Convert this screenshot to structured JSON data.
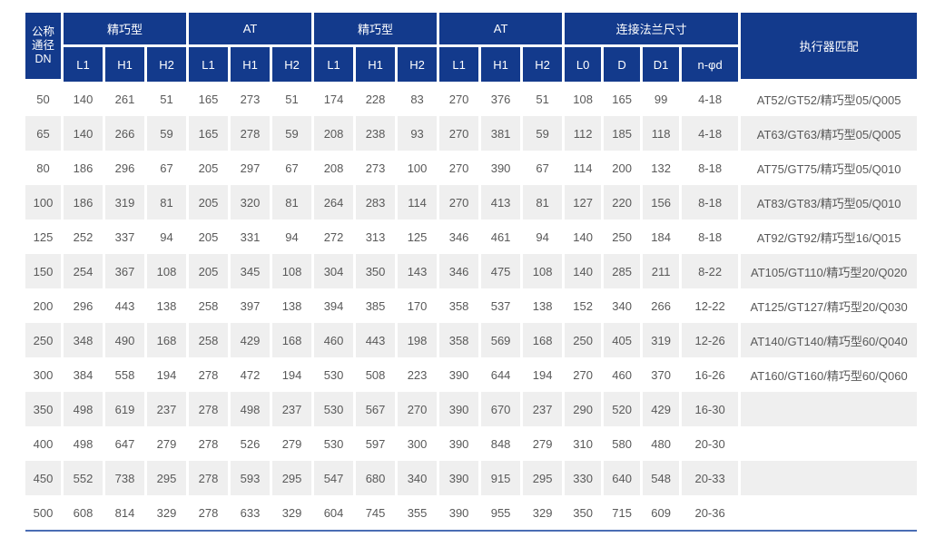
{
  "table": {
    "header": {
      "dn_label": "公称\n通径\nDN",
      "groups": [
        {
          "label": "精巧型"
        },
        {
          "label": "AT"
        },
        {
          "label": "精巧型"
        },
        {
          "label": "AT"
        },
        {
          "label": "连接法兰尺寸"
        }
      ],
      "sub": [
        "L1",
        "H1",
        "H2",
        "L1",
        "H1",
        "H2",
        "L1",
        "H1",
        "H2",
        "L1",
        "H1",
        "H2",
        "L0",
        "D",
        "D1",
        "n-φd"
      ],
      "actuator_label": "执行器匹配"
    },
    "rows": [
      [
        50,
        140,
        261,
        51,
        165,
        273,
        51,
        174,
        228,
        83,
        270,
        376,
        51,
        108,
        165,
        99,
        "4-18",
        "AT52/GT52/精巧型05/Q005"
      ],
      [
        65,
        140,
        266,
        59,
        165,
        278,
        59,
        208,
        238,
        93,
        270,
        381,
        59,
        112,
        185,
        118,
        "4-18",
        "AT63/GT63/精巧型05/Q005"
      ],
      [
        80,
        186,
        296,
        67,
        205,
        297,
        67,
        208,
        273,
        100,
        270,
        390,
        67,
        114,
        200,
        132,
        "8-18",
        "AT75/GT75/精巧型05/Q010"
      ],
      [
        100,
        186,
        319,
        81,
        205,
        320,
        81,
        264,
        283,
        114,
        270,
        413,
        81,
        127,
        220,
        156,
        "8-18",
        "AT83/GT83/精巧型05/Q010"
      ],
      [
        125,
        252,
        337,
        94,
        205,
        331,
        94,
        272,
        313,
        125,
        346,
        461,
        94,
        140,
        250,
        184,
        "8-18",
        "AT92/GT92/精巧型16/Q015"
      ],
      [
        150,
        254,
        367,
        108,
        205,
        345,
        108,
        304,
        350,
        143,
        346,
        475,
        108,
        140,
        285,
        211,
        "8-22",
        "AT105/GT110/精巧型20/Q020"
      ],
      [
        200,
        296,
        443,
        138,
        258,
        397,
        138,
        394,
        385,
        170,
        358,
        537,
        138,
        152,
        340,
        266,
        "12-22",
        "AT125/GT127/精巧型20/Q030"
      ],
      [
        250,
        348,
        490,
        168,
        258,
        429,
        168,
        460,
        443,
        198,
        358,
        569,
        168,
        250,
        405,
        319,
        "12-26",
        "AT140/GT140/精巧型60/Q040"
      ],
      [
        300,
        384,
        558,
        194,
        278,
        472,
        194,
        530,
        508,
        223,
        390,
        644,
        194,
        270,
        460,
        370,
        "16-26",
        "AT160/GT160/精巧型60/Q060"
      ],
      [
        350,
        498,
        619,
        237,
        278,
        498,
        237,
        530,
        567,
        270,
        390,
        670,
        237,
        290,
        520,
        429,
        "16-30",
        ""
      ],
      [
        400,
        498,
        647,
        279,
        278,
        526,
        279,
        530,
        597,
        300,
        390,
        848,
        279,
        310,
        580,
        480,
        "20-30",
        ""
      ],
      [
        450,
        552,
        738,
        295,
        278,
        593,
        295,
        547,
        680,
        340,
        390,
        915,
        295,
        330,
        640,
        548,
        "20-33",
        ""
      ],
      [
        500,
        608,
        814,
        329,
        278,
        633,
        329,
        604,
        745,
        355,
        390,
        955,
        329,
        350,
        715,
        609,
        "20-36",
        ""
      ]
    ]
  },
  "colors": {
    "header_bg": "#133a8c",
    "header_text": "#ffffff",
    "stripe": "#efefef",
    "data_text": "#595959",
    "bottom_line": "#4a6db4"
  }
}
